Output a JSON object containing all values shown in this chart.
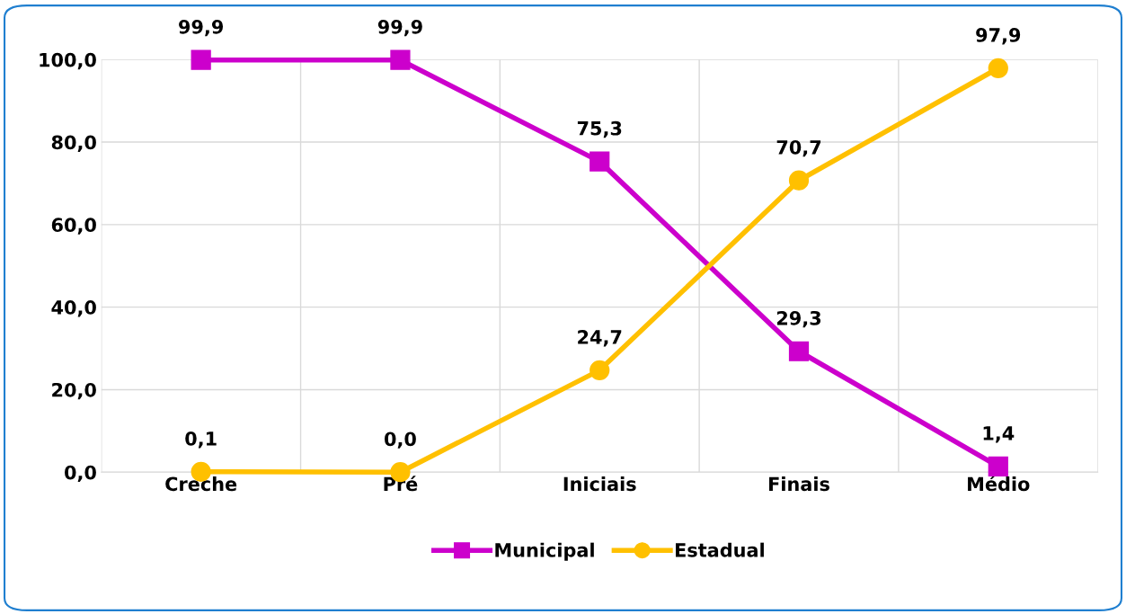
{
  "chart_data": {
    "type": "line",
    "categories": [
      "Creche",
      "Pré",
      "Iniciais",
      "Finais",
      "Médio"
    ],
    "series": [
      {
        "name": "Municipal",
        "color": "#cc00cc",
        "marker": "square",
        "values": [
          99.9,
          99.9,
          75.3,
          29.3,
          1.4
        ],
        "value_labels": [
          "99,9",
          "99,9",
          "75,3",
          "29,3",
          "1,4"
        ]
      },
      {
        "name": "Estadual",
        "color": "#ffc000",
        "marker": "circle",
        "values": [
          0.1,
          0.0,
          24.7,
          70.7,
          97.9
        ],
        "value_labels": [
          "0,1",
          "0,0",
          "24,7",
          "70,7",
          "97,9"
        ]
      }
    ],
    "ylim": [
      0,
      100
    ],
    "yticks": [
      {
        "value": 0,
        "label": "0,0"
      },
      {
        "value": 20,
        "label": "20,0"
      },
      {
        "value": 40,
        "label": "40,0"
      },
      {
        "value": 60,
        "label": "60,0"
      },
      {
        "value": 80,
        "label": "80,0"
      },
      {
        "value": 100,
        "label": "100,0"
      }
    ],
    "grid": true,
    "legend": "bottom",
    "line_style": "solid"
  }
}
